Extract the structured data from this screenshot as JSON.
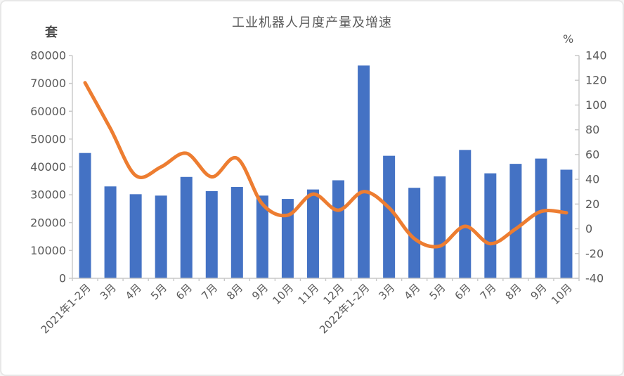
{
  "header": {
    "title": "工业机器人月度产量及增速"
  },
  "axes": {
    "left_unit": "套",
    "right_unit": "%"
  },
  "chart_data": {
    "type": "bar+line",
    "title": "工业机器人月度产量及增速",
    "categories": [
      "2021年1-2月",
      "3月",
      "4月",
      "5月",
      "6月",
      "7月",
      "8月",
      "9月",
      "10月",
      "11月",
      "12月",
      "2022年1-2月",
      "3月",
      "4月",
      "5月",
      "6月",
      "7月",
      "8月",
      "9月",
      "10月"
    ],
    "series": [
      {
        "name": "月度产量",
        "unit": "套",
        "type": "bar",
        "axis": "left",
        "color": "#4472C4",
        "values": [
          45000,
          33000,
          30200,
          29700,
          36400,
          31300,
          32800,
          29700,
          28500,
          31900,
          35200,
          76400,
          44000,
          32500,
          36600,
          46100,
          37700,
          41100,
          43000,
          39000
        ]
      },
      {
        "name": "增速",
        "unit": "%",
        "type": "line",
        "axis": "right",
        "color": "#ED7D31",
        "values": [
          118,
          81,
          43,
          50,
          61,
          42,
          57,
          20,
          11,
          28,
          15,
          30,
          17,
          -8,
          -14,
          2,
          -12,
          0,
          14,
          13
        ]
      }
    ],
    "left_axis": {
      "unit": "套",
      "min": 0,
      "max": 80000,
      "step": 10000,
      "tick_labels": [
        "80000",
        "70000",
        "60000",
        "50000",
        "40000",
        "30000",
        "20000",
        "10000",
        "0"
      ]
    },
    "right_axis": {
      "unit": "%",
      "min": -40,
      "max": 140,
      "step": 20,
      "tick_labels": [
        "140",
        "120",
        "100",
        "80",
        "60",
        "40",
        "20",
        "0",
        "-20",
        "-40"
      ]
    },
    "grid": false,
    "legend": "none",
    "style": {
      "axis_color": "#c8c8c8",
      "label_color": "#595959",
      "title_color": "#5a5a5a",
      "background": "#ffffff"
    }
  }
}
